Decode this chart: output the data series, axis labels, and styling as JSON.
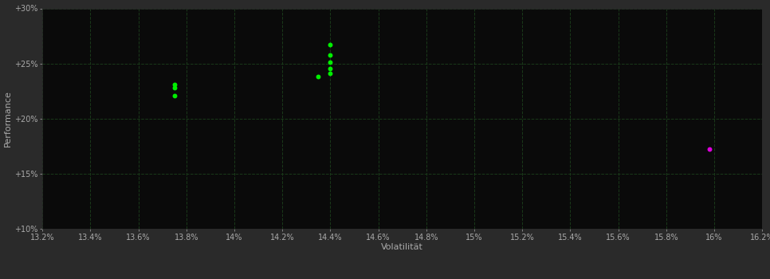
{
  "background_color": "#2a2a2a",
  "plot_bg_color": "#0a0a0a",
  "grid_color": "#1a3a1a",
  "grid_style": "--",
  "xlabel": "Volatilität",
  "ylabel": "Performance",
  "xlim": [
    0.132,
    0.162
  ],
  "ylim": [
    0.1,
    0.3
  ],
  "xticks": [
    0.132,
    0.134,
    0.136,
    0.138,
    0.14,
    0.142,
    0.144,
    0.146,
    0.148,
    0.15,
    0.152,
    0.154,
    0.156,
    0.158,
    0.16,
    0.162
  ],
  "yticks": [
    0.1,
    0.15,
    0.2,
    0.25,
    0.3
  ],
  "ytick_labels": [
    "+10%",
    "+15%",
    "+20%",
    "+25%",
    "+30%"
  ],
  "xtick_labels": [
    "13.2%",
    "13.4%",
    "13.6%",
    "13.8%",
    "14%",
    "14.2%",
    "14.4%",
    "14.6%",
    "14.8%",
    "15%",
    "15.2%",
    "15.4%",
    "15.6%",
    "15.8%",
    "16%",
    "16.2%"
  ],
  "green_dots": [
    [
      0.1375,
      0.231
    ],
    [
      0.1375,
      0.228
    ],
    [
      0.1375,
      0.221
    ],
    [
      0.1435,
      0.238
    ],
    [
      0.144,
      0.267
    ],
    [
      0.144,
      0.258
    ],
    [
      0.144,
      0.251
    ],
    [
      0.144,
      0.2455
    ],
    [
      0.144,
      0.241
    ]
  ],
  "magenta_dot": [
    0.1598,
    0.172
  ],
  "dot_size": 18,
  "green_color": "#00ee00",
  "magenta_color": "#dd00dd",
  "tick_color": "#aaaaaa",
  "label_color": "#aaaaaa",
  "tick_fontsize": 7,
  "label_fontsize": 8
}
